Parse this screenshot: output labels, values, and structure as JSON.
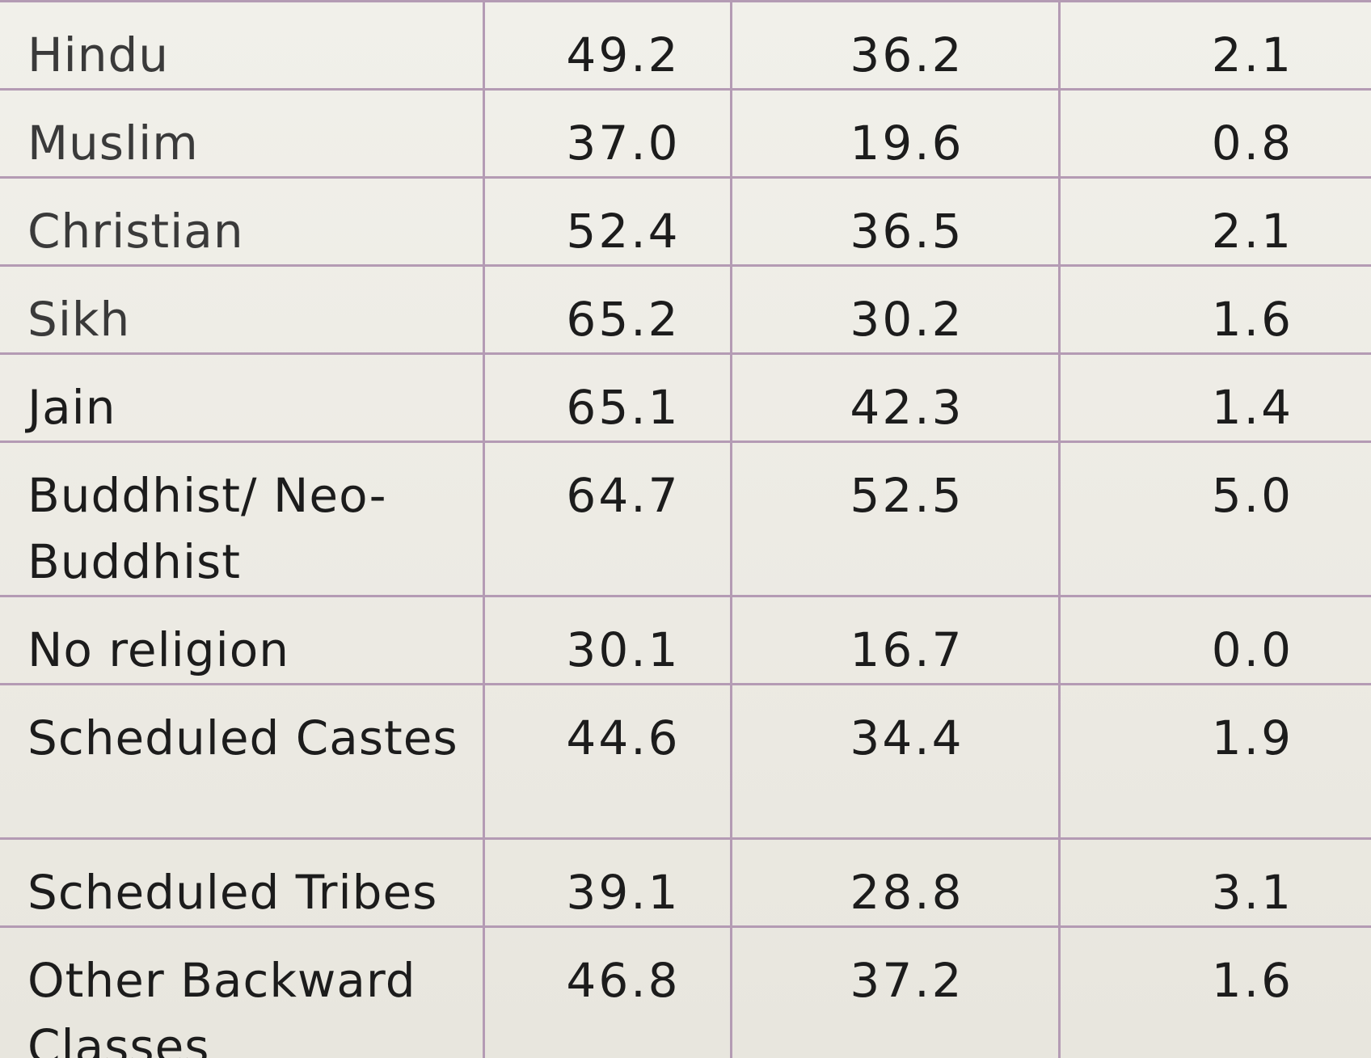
{
  "table": {
    "rows": [
      {
        "label": "Hindu",
        "v1": "49.2",
        "v2": "36.2",
        "v3": "2.1"
      },
      {
        "label": "Muslim",
        "v1": "37.0",
        "v2": "19.6",
        "v3": "0.8"
      },
      {
        "label": "Christian",
        "v1": "52.4",
        "v2": "36.5",
        "v3": "2.1"
      },
      {
        "label": "Sikh",
        "v1": "65.2",
        "v2": "30.2",
        "v3": "1.6"
      },
      {
        "label": "Jain",
        "v1": "65.1",
        "v2": "42.3",
        "v3": "1.4"
      },
      {
        "label": "Buddhist/ Neo-Buddhist",
        "v1": "64.7",
        "v2": "52.5",
        "v3": "5.0"
      },
      {
        "label": "No religion",
        "v1": "30.1",
        "v2": "16.7",
        "v3": "0.0"
      },
      {
        "label": "Scheduled Castes",
        "v1": "44.6",
        "v2": "34.4",
        "v3": "1.9"
      },
      {
        "label": "Scheduled Tribes",
        "v1": "39.1",
        "v2": "28.8",
        "v3": "3.1"
      },
      {
        "label": "Other Backward Classes",
        "v1": "46.8",
        "v2": "37.2",
        "v3": "1.6"
      }
    ]
  },
  "colors": {
    "grid_line": "#b49bb4",
    "text": "#1c1c1c",
    "paper": "#efeee8"
  }
}
